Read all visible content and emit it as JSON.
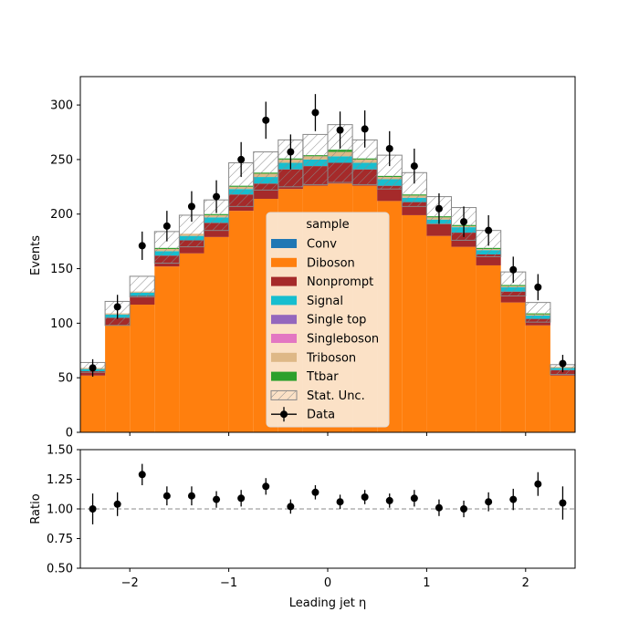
{
  "chart_data": {
    "type": "bar",
    "stacked": true,
    "xlabel": "Leading jet  η",
    "ylabel": "Events",
    "ratio_ylabel": "Ratio",
    "xlim": [
      -2.5,
      2.5
    ],
    "ylim": [
      0,
      326
    ],
    "ratio_ylim": [
      0.5,
      1.5
    ],
    "ratio_reference": 1.0,
    "grid": false,
    "legend_position": "center",
    "legend_title": "sample",
    "bin_edges": [
      -2.5,
      -2.25,
      -2.0,
      -1.75,
      -1.5,
      -1.25,
      -1.0,
      -0.75,
      -0.5,
      -0.25,
      0.0,
      0.25,
      0.5,
      0.75,
      1.0,
      1.25,
      1.5,
      1.75,
      2.0,
      2.25,
      2.5
    ],
    "series": [
      {
        "name": "Conv",
        "color": "#1f77b4",
        "values": [
          0,
          0,
          0,
          0,
          0,
          0,
          0,
          0,
          0,
          0,
          0,
          0,
          0,
          0,
          0,
          0,
          0,
          0,
          0,
          0
        ]
      },
      {
        "name": "Diboson",
        "color": "#ff7f0e",
        "values": [
          52,
          98,
          117,
          152,
          164,
          179,
          203,
          214,
          223,
          226,
          228,
          226,
          212,
          199,
          180,
          170,
          153,
          119,
          98,
          52
        ]
      },
      {
        "name": "Nonprompt",
        "color": "#a52a2a",
        "values": [
          4,
          7,
          8,
          10,
          12,
          13,
          15,
          14,
          18,
          18,
          19,
          15,
          14,
          12,
          11,
          13,
          10,
          10,
          6,
          5
        ]
      },
      {
        "name": "Signal",
        "color": "#17becf",
        "values": [
          2,
          3,
          3,
          4,
          4,
          5,
          5,
          6,
          6,
          6,
          6,
          6,
          6,
          4,
          4,
          5,
          4,
          4,
          3,
          2
        ]
      },
      {
        "name": "Single top",
        "color": "#9467bd",
        "values": [
          0,
          0,
          0,
          0,
          0,
          0,
          0,
          0,
          0,
          0,
          0,
          0,
          0,
          0,
          0,
          0,
          0,
          0,
          0,
          0
        ]
      },
      {
        "name": "Singleboson",
        "color": "#e377c2",
        "values": [
          0,
          0,
          0,
          0,
          0,
          0,
          0,
          0,
          0,
          0,
          0,
          0,
          0,
          0,
          0,
          0,
          0,
          0,
          0,
          0
        ]
      },
      {
        "name": "Triboson",
        "color": "#deb887",
        "values": [
          1,
          1,
          1,
          2,
          2,
          2,
          2,
          3,
          3,
          3,
          4,
          3,
          2,
          2,
          2,
          1,
          1,
          1,
          1,
          1
        ]
      },
      {
        "name": "Ttbar",
        "color": "#2ca02c",
        "values": [
          0,
          0,
          0,
          1,
          0,
          1,
          1,
          1,
          1,
          1,
          2,
          1,
          1,
          1,
          1,
          1,
          1,
          1,
          1,
          0
        ]
      }
    ],
    "stat_unc": {
      "name": "Stat. Unc.",
      "up": [
        64,
        120,
        143,
        184,
        199,
        213,
        247,
        257,
        268,
        273,
        282,
        268,
        254,
        238,
        216,
        206,
        185,
        147,
        119,
        62
      ],
      "down": [
        55,
        98,
        124,
        155,
        170,
        185,
        207,
        222,
        225,
        227,
        229,
        227,
        223,
        207,
        191,
        176,
        161,
        125,
        101,
        53
      ]
    },
    "data_points": {
      "name": "Data",
      "x": [
        -2.375,
        -2.125,
        -1.875,
        -1.625,
        -1.375,
        -1.125,
        -0.875,
        -0.625,
        -0.375,
        -0.125,
        0.125,
        0.375,
        0.625,
        0.875,
        1.125,
        1.375,
        1.625,
        1.875,
        2.125,
        2.375
      ],
      "y": [
        59,
        115,
        171,
        189,
        207,
        216,
        250,
        286,
        257,
        293,
        277,
        278,
        260,
        244,
        205,
        193,
        185,
        149,
        133,
        63
      ],
      "yerr": [
        8,
        11,
        13,
        14,
        14,
        15,
        16,
        17,
        16,
        17,
        17,
        17,
        16,
        16,
        14,
        14,
        14,
        12,
        12,
        8
      ]
    },
    "ratio": {
      "y": [
        1.0,
        1.04,
        1.29,
        1.11,
        1.11,
        1.08,
        1.09,
        1.19,
        1.02,
        1.14,
        1.06,
        1.1,
        1.07,
        1.09,
        1.01,
        1.0,
        1.06,
        1.08,
        1.21,
        1.05
      ],
      "yerr": [
        0.13,
        0.1,
        0.09,
        0.08,
        0.08,
        0.07,
        0.07,
        0.07,
        0.06,
        0.06,
        0.06,
        0.06,
        0.06,
        0.07,
        0.07,
        0.07,
        0.08,
        0.09,
        0.1,
        0.14
      ]
    },
    "yticks": [
      0,
      50,
      100,
      150,
      200,
      250,
      300
    ],
    "xticks": [
      -2,
      -1,
      0,
      1,
      2
    ],
    "ratio_yticks": [
      "0.50",
      "0.75",
      "1.00",
      "1.25",
      "1.50"
    ]
  }
}
